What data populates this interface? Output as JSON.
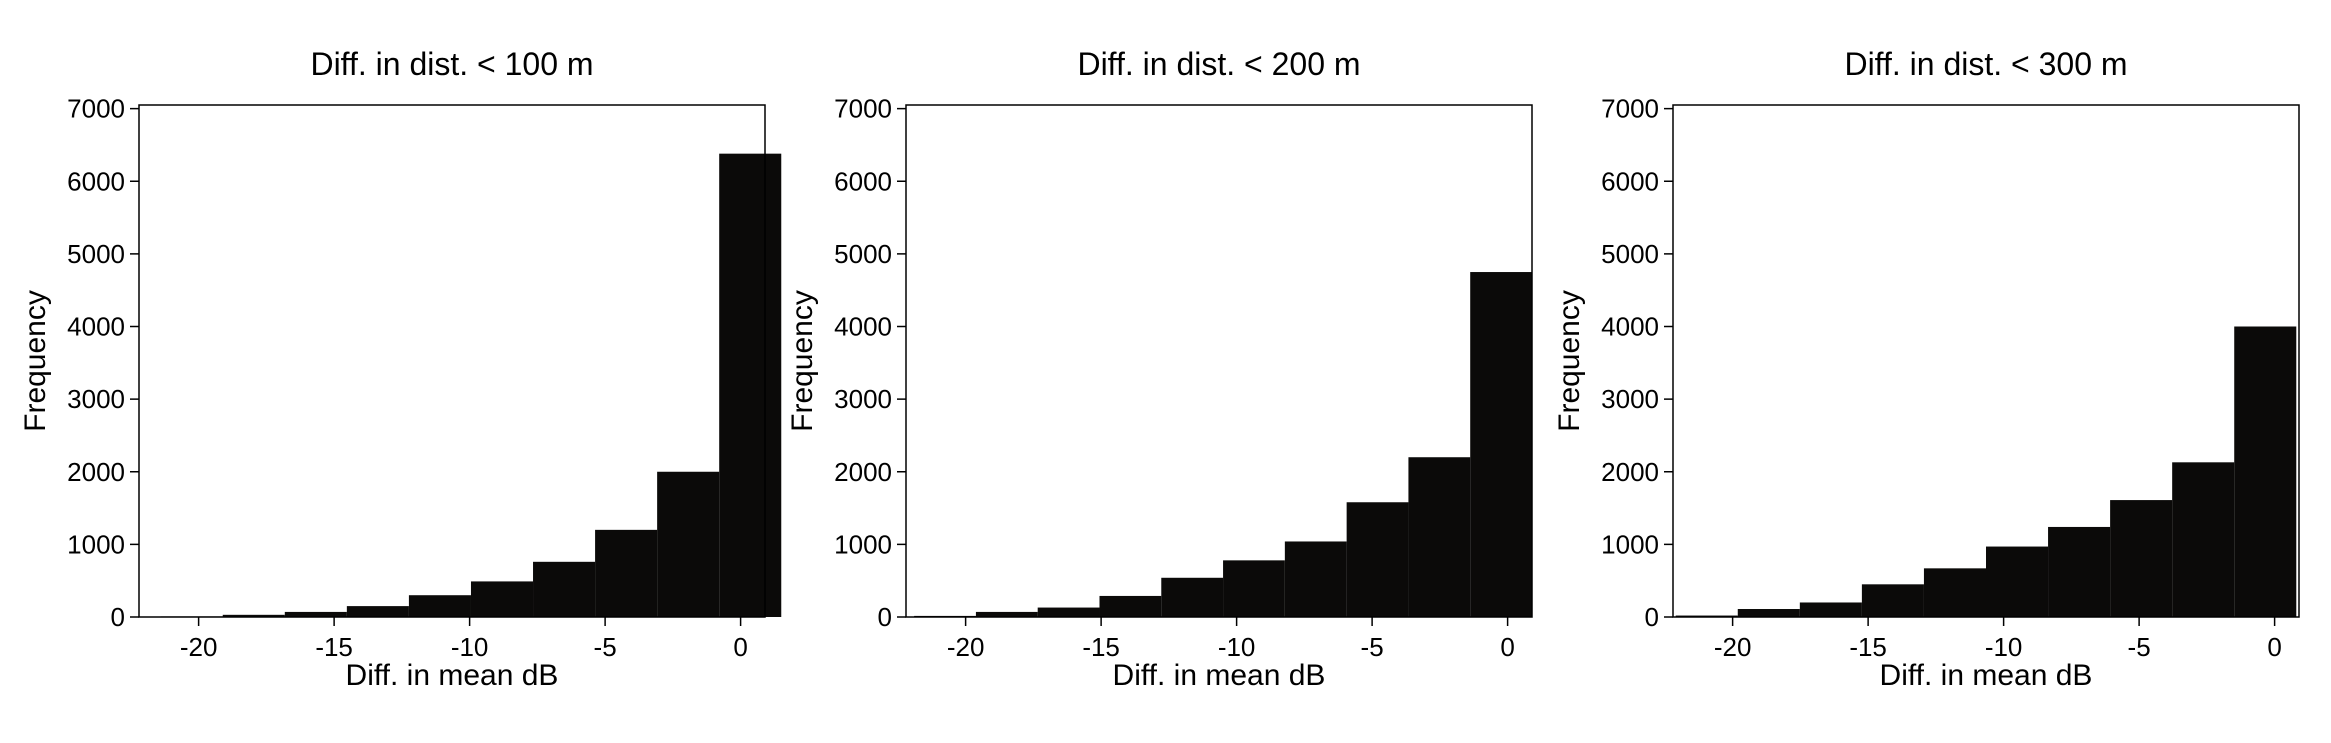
{
  "chart_data": [
    {
      "type": "bar",
      "title": "Diff. in dist. < 100 m",
      "xlabel": "Diff. in mean dB",
      "ylabel": "Frequency",
      "xlim": [
        -22.2,
        0.9
      ],
      "ylim": [
        0,
        7050
      ],
      "xticks": [
        -20,
        -15,
        -10,
        -5,
        0
      ],
      "xtick_labels": [
        "-20",
        "-15",
        "-10",
        "-5",
        "0"
      ],
      "yticks": [
        0,
        1000,
        2000,
        3000,
        4000,
        5000,
        6000,
        7000
      ],
      "ytick_labels": [
        "0",
        "1000",
        "2000",
        "3000",
        "4000",
        "5000",
        "6000",
        "7000"
      ],
      "bin_edges": [
        -21.4,
        -19.11,
        -16.82,
        -14.53,
        -12.24,
        -9.95,
        -7.66,
        -5.37,
        -3.08,
        -0.79,
        1.5
      ],
      "values": [
        8,
        30,
        70,
        150,
        300,
        490,
        760,
        1200,
        2000,
        6380
      ],
      "color": "#0b0a09",
      "grid": false
    },
    {
      "type": "bar",
      "title": "Diff. in dist. < 200 m",
      "xlabel": "Diff. in mean dB",
      "ylabel": "Frequency",
      "xlim": [
        -22.2,
        0.9
      ],
      "ylim": [
        0,
        7050
      ],
      "xticks": [
        -20,
        -15,
        -10,
        -5,
        0
      ],
      "xtick_labels": [
        "-20",
        "-15",
        "-10",
        "-5",
        "0"
      ],
      "yticks": [
        0,
        1000,
        2000,
        3000,
        4000,
        5000,
        6000,
        7000
      ],
      "ytick_labels": [
        "0",
        "1000",
        "2000",
        "3000",
        "4000",
        "5000",
        "6000",
        "7000"
      ],
      "bin_edges": [
        -21.9,
        -19.62,
        -17.34,
        -15.06,
        -12.78,
        -10.5,
        -8.22,
        -5.94,
        -3.66,
        -1.38,
        0.9
      ],
      "values": [
        15,
        70,
        130,
        290,
        540,
        780,
        1040,
        1580,
        2200,
        4750
      ],
      "color": "#0b0a09",
      "grid": false
    },
    {
      "type": "bar",
      "title": "Diff. in dist. < 300 m",
      "xlabel": "Diff. in mean dB",
      "ylabel": "Frequency",
      "xlim": [
        -22.2,
        0.9
      ],
      "ylim": [
        0,
        7050
      ],
      "xticks": [
        -20,
        -15,
        -10,
        -5,
        0
      ],
      "xtick_labels": [
        "-20",
        "-15",
        "-10",
        "-5",
        "0"
      ],
      "yticks": [
        0,
        1000,
        2000,
        3000,
        4000,
        5000,
        6000,
        7000
      ],
      "ytick_labels": [
        "0",
        "1000",
        "2000",
        "3000",
        "4000",
        "5000",
        "6000",
        "7000"
      ],
      "bin_edges": [
        -22.1,
        -19.81,
        -17.52,
        -15.23,
        -12.94,
        -10.65,
        -8.36,
        -6.07,
        -3.78,
        -1.49,
        0.8
      ],
      "values": [
        20,
        110,
        200,
        450,
        670,
        970,
        1240,
        1610,
        2130,
        4000
      ],
      "color": "#0b0a09",
      "grid": false
    }
  ]
}
